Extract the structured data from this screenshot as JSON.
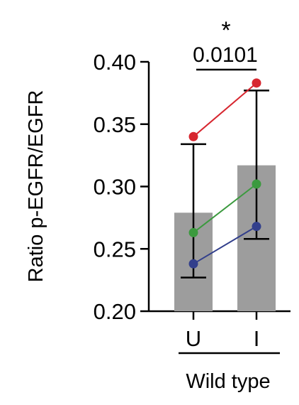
{
  "chart_data": {
    "type": "bar",
    "ylabel": "Ratio p-EGFR/EGFR",
    "ylim": [
      0.2,
      0.4
    ],
    "yticks": [
      "0.20",
      "0.25",
      "0.30",
      "0.35",
      "0.40"
    ],
    "yticks_values": [
      0.2,
      0.25,
      0.3,
      0.35,
      0.4
    ],
    "categories": [
      "U",
      "I"
    ],
    "group_label": "Wild type",
    "bar_color": "#9d9d9d",
    "bars": [
      {
        "category": "U",
        "mean": 0.279,
        "error_high": 0.334,
        "error_low": 0.227
      },
      {
        "category": "I",
        "mean": 0.317,
        "error_high": 0.377,
        "error_low": 0.258
      }
    ],
    "paired_series": [
      {
        "color": "#d7262f",
        "values": [
          0.34,
          0.383
        ]
      },
      {
        "color": "#3b9a3e",
        "values": [
          0.263,
          0.302
        ]
      },
      {
        "color": "#323f8c",
        "values": [
          0.238,
          0.268
        ]
      }
    ],
    "significance": {
      "p_value": "0.0101",
      "stars": "*"
    },
    "grid": false
  }
}
